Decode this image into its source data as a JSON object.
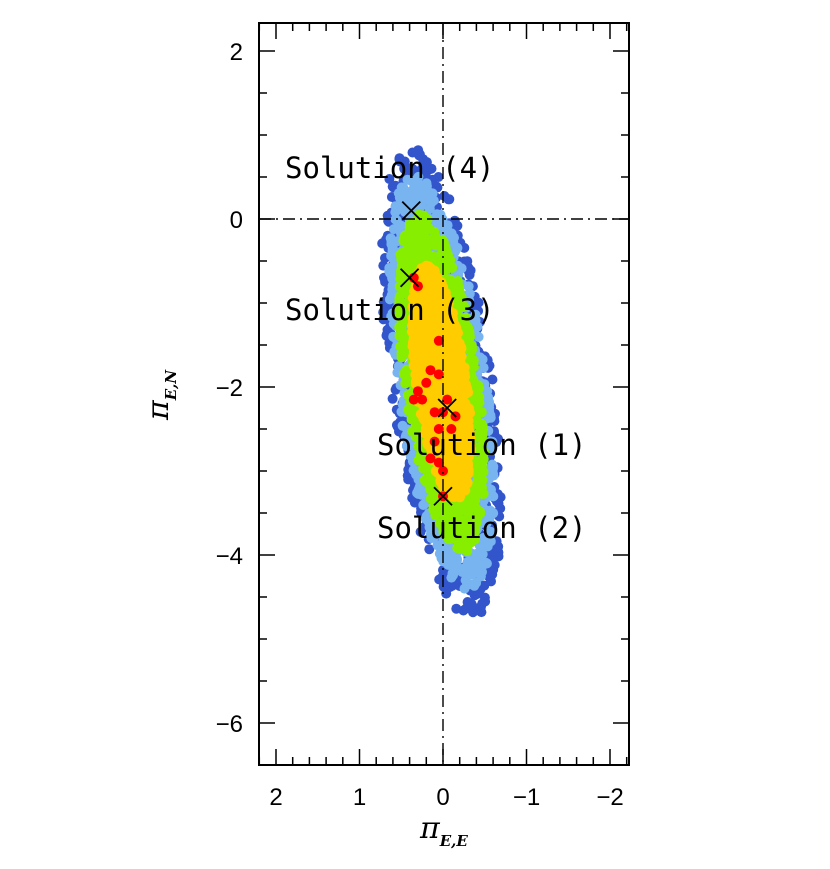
{
  "chart_data": {
    "type": "scatter",
    "title": "",
    "xlabel": {
      "symbol": "π",
      "subscript": "E,E"
    },
    "ylabel": {
      "symbol": "π",
      "subscript": "E,N"
    },
    "xlim": [
      2.2,
      -2.2
    ],
    "ylim": [
      -6.5,
      2.0
    ],
    "x_ticks": [
      2,
      1,
      0,
      -1,
      -2
    ],
    "y_ticks": [
      2,
      0,
      -2,
      -4,
      -6
    ],
    "tick_labels_x": [
      "2",
      "1",
      "0",
      "−1",
      "−2"
    ],
    "tick_labels_y": [
      "2",
      "0",
      "−2",
      "−4",
      "−6"
    ],
    "reference_lines": [
      {
        "orientation": "vertical",
        "value": 0,
        "style": "dash-dot"
      },
      {
        "orientation": "horizontal",
        "value": 0,
        "style": "dash-dot"
      }
    ],
    "distribution": {
      "description_levels": [
        "1sigma",
        "2sigma",
        "3sigma",
        "4sigma",
        "5sigma"
      ],
      "colors": {
        "1sigma": "#ff0000",
        "2sigma": "#ffcc00",
        "3sigma": "#88ee00",
        "4sigma": "#78b4f0",
        "5sigma": "#3355cc"
      },
      "orientation": "elongated along pi_E,N",
      "center": [
        0.0,
        -2.0
      ],
      "extent_x": [
        0.9,
        -0.55
      ],
      "extent_y": [
        -4.9,
        0.95
      ]
    },
    "red_points": [
      [
        0.05,
        -1.45
      ],
      [
        0.15,
        -1.8
      ],
      [
        0.05,
        -1.85
      ],
      [
        0.2,
        -1.95
      ],
      [
        0.3,
        -2.05
      ],
      [
        0.35,
        -2.15
      ],
      [
        0.25,
        -2.15
      ],
      [
        -0.05,
        -2.15
      ],
      [
        0.1,
        -2.3
      ],
      [
        0.0,
        -2.3
      ],
      [
        -0.15,
        -2.35
      ],
      [
        -0.1,
        -2.5
      ],
      [
        0.05,
        -2.5
      ],
      [
        0.1,
        -2.65
      ],
      [
        0.15,
        -2.85
      ],
      [
        0.05,
        -2.9
      ],
      [
        0.0,
        -3.0
      ],
      [
        0.0,
        -3.3
      ],
      [
        0.35,
        -0.7
      ],
      [
        0.3,
        -0.8
      ]
    ],
    "solutions": [
      {
        "label": "Solution (1)",
        "x": -0.05,
        "y": -2.25
      },
      {
        "label": "Solution (2)",
        "x": 0.0,
        "y": -3.3
      },
      {
        "label": "Solution (3)",
        "x": 0.4,
        "y": -0.7
      },
      {
        "label": "Solution (4)",
        "x": 0.38,
        "y": 0.1
      }
    ]
  }
}
